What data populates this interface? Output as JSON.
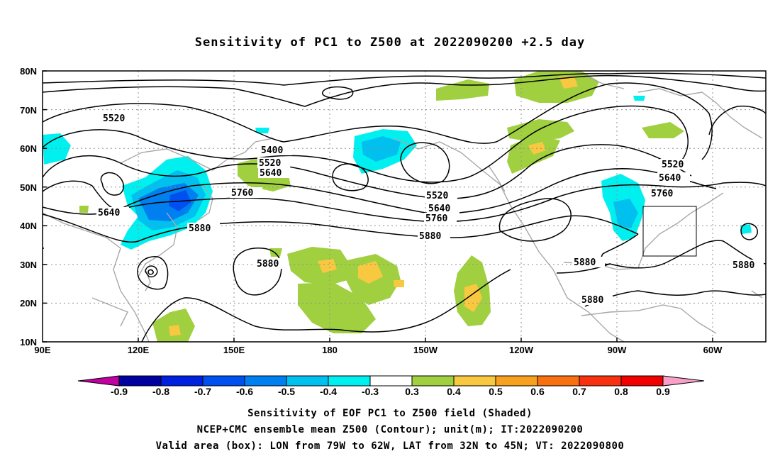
{
  "title": "Sensitivity of PC1 to Z500 at 2022090200 +2.5 day",
  "lat_labels": [
    "80N",
    "70N",
    "60N",
    "50N",
    "40N",
    "30N",
    "20N",
    "10N"
  ],
  "lon_labels": [
    "90E",
    "120E",
    "150E",
    "180",
    "150W",
    "120W",
    "90W",
    "60W"
  ],
  "contour_labels": [
    "5520",
    "5400",
    "5520",
    "5640",
    "5760",
    "5640",
    "5880",
    "5880",
    "5520",
    "5640",
    "5760",
    "5880",
    "5880",
    "5520",
    "5640",
    "5760",
    "5880",
    "5880"
  ],
  "colorbar": {
    "labels": [
      "-0.9",
      "-0.8",
      "-0.7",
      "-0.6",
      "-0.5",
      "-0.4",
      "-0.3",
      "0.3",
      "0.4",
      "0.5",
      "0.6",
      "0.7",
      "0.8",
      "0.9"
    ],
    "colors": [
      "#c000a0",
      "#0000a0",
      "#0020e0",
      "#0050f0",
      "#0080f0",
      "#00c0f0",
      "#00f0f0",
      "#ffffff",
      "#a0d040",
      "#f8c840",
      "#f8a020",
      "#f87010",
      "#f83010",
      "#f00000",
      "#f8a0c8"
    ]
  },
  "captions": [
    "Sensitivity of EOF PC1 to Z500 field (Shaded)",
    "NCEP+CMC ensemble mean Z500 (Contour); unit(m); IT:2022090200",
    "Valid area (box): LON from 79W to 62W, LAT from 32N to 45N; VT: 2022090800"
  ]
}
